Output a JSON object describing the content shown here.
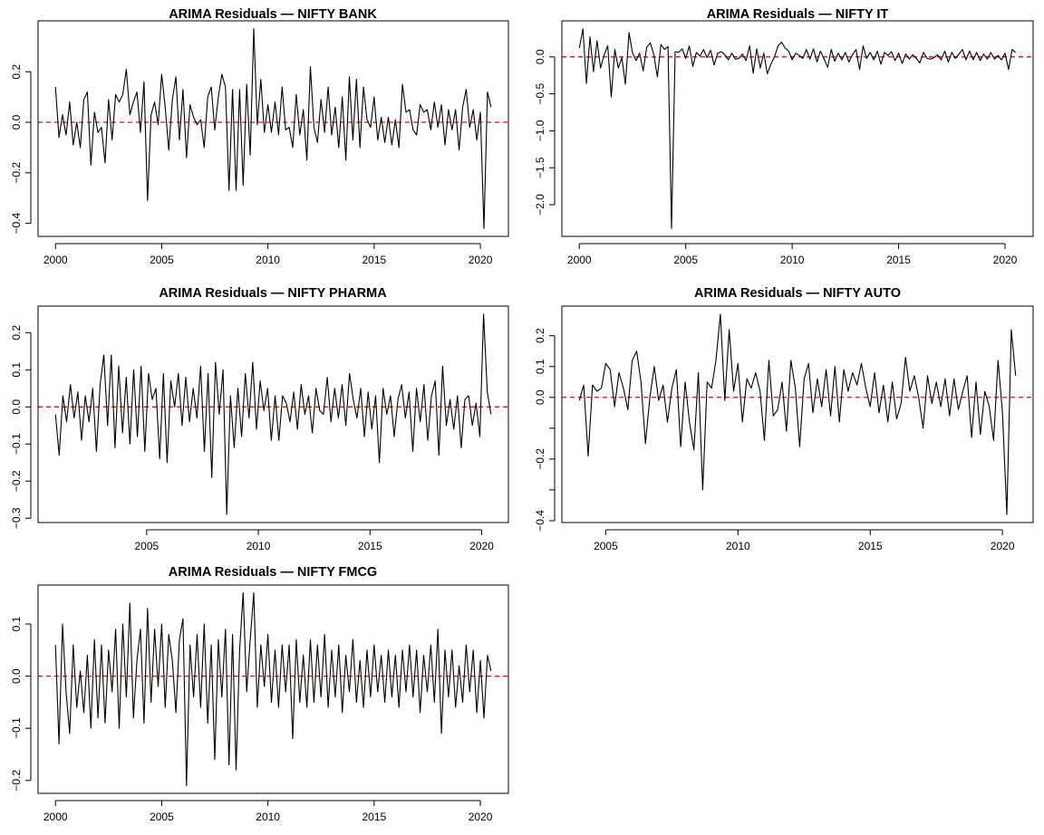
{
  "chart_data": [
    {
      "type": "line",
      "title": "ARIMA Residuals — NIFTY BANK",
      "start": 2000.0,
      "step_months": 2,
      "xticks": [
        2000,
        2005,
        2010,
        2015,
        2020
      ],
      "yticks": [
        -0.4,
        -0.2,
        0.0,
        0.2
      ],
      "ytick_labels": [
        "-0.4",
        "-0.2",
        "0.0",
        "0.2"
      ],
      "reference_line": 0,
      "line_color": "#000000",
      "reference_color": "#ff0000",
      "values": [
        0.14,
        -0.06,
        0.03,
        -0.05,
        0.08,
        -0.09,
        0.0,
        -0.1,
        0.09,
        0.12,
        -0.17,
        0.04,
        -0.04,
        -0.02,
        -0.16,
        0.09,
        -0.07,
        0.11,
        0.08,
        0.11,
        0.21,
        0.03,
        0.08,
        0.12,
        -0.04,
        0.16,
        -0.31,
        0.03,
        0.08,
        -0.01,
        0.19,
        0.06,
        -0.11,
        0.09,
        0.18,
        -0.07,
        0.13,
        -0.14,
        0.07,
        0.02,
        -0.01,
        0.01,
        -0.1,
        0.1,
        0.14,
        -0.03,
        0.1,
        0.19,
        0.14,
        -0.27,
        0.13,
        -0.27,
        0.13,
        -0.25,
        0.15,
        -0.13,
        0.37,
        -0.01,
        0.17,
        -0.04,
        0.07,
        -0.04,
        0.08,
        -0.05,
        0.14,
        -0.03,
        -0.02,
        -0.1,
        0.11,
        -0.05,
        0.05,
        -0.15,
        0.22,
        -0.02,
        -0.08,
        0.09,
        -0.04,
        0.14,
        -0.05,
        0.06,
        -0.1,
        0.1,
        -0.15,
        0.18,
        -0.07,
        0.17,
        -0.1,
        0.14,
        0.01,
        -0.02,
        0.1,
        -0.07,
        0.02,
        -0.08,
        0.02,
        -0.09,
        0.01,
        -0.1,
        0.15,
        0.04,
        0.05,
        -0.03,
        -0.05,
        0.07,
        0.04,
        0.05,
        -0.03,
        0.08,
        -0.02,
        0.07,
        -0.09,
        0.05,
        -0.03,
        0.05,
        -0.11,
        0.06,
        0.13,
        -0.02,
        0.05,
        -0.07,
        0.04,
        -0.42,
        0.12,
        0.06
      ]
    },
    {
      "type": "line",
      "title": "ARIMA Residuals — NIFTY IT",
      "start": 2000.0,
      "step_months": 2,
      "xticks": [
        2000,
        2005,
        2010,
        2015,
        2020
      ],
      "yticks": [
        -2.0,
        -1.5,
        -1.0,
        -0.5,
        0.0
      ],
      "ytick_labels": [
        "-2.0",
        "-1.5",
        "-1.0",
        "-0.5",
        "0.0"
      ],
      "reference_line": 0,
      "line_color": "#000000",
      "reference_color": "#ff0000",
      "values": [
        0.12,
        0.38,
        -0.36,
        0.27,
        -0.2,
        0.22,
        -0.15,
        0.03,
        0.15,
        -0.54,
        0.1,
        -0.15,
        -0.01,
        -0.37,
        0.33,
        0.05,
        -0.05,
        0.05,
        -0.19,
        0.13,
        0.19,
        0.03,
        -0.27,
        0.17,
        0.1,
        0.14,
        -2.32,
        0.07,
        0.06,
        0.11,
        -0.02,
        0.15,
        -0.13,
        0.06,
        0.01,
        0.1,
        -0.01,
        0.09,
        -0.11,
        0.05,
        0.07,
        0.03,
        -0.04,
        0.05,
        -0.03,
        -0.02,
        0.04,
        -0.05,
        0.15,
        -0.22,
        0.11,
        -0.15,
        0.05,
        -0.23,
        -0.1,
        0.0,
        0.15,
        0.2,
        0.12,
        0.08,
        -0.04,
        0.05,
        0.02,
        -0.02,
        0.1,
        -0.03,
        0.11,
        -0.07,
        0.08,
        -0.03,
        -0.14,
        0.1,
        -0.06,
        0.05,
        -0.04,
        0.06,
        -0.07,
        0.03,
        0.1,
        -0.17,
        0.15,
        -0.02,
        0.06,
        -0.04,
        0.08,
        -0.1,
        0.06,
        0.02,
        0.07,
        -0.05,
        0.05,
        -0.09,
        0.04,
        -0.03,
        0.03,
        -0.02,
        -0.08,
        0.06,
        -0.02,
        -0.03,
        -0.01,
        0.03,
        -0.04,
        0.08,
        -0.07,
        0.06,
        -0.02,
        0.04,
        0.1,
        -0.04,
        0.08,
        -0.04,
        0.06,
        -0.05,
        0.04,
        -0.03,
        0.06,
        -0.03,
        0.02,
        -0.04,
        0.05,
        -0.17,
        0.1,
        0.06
      ]
    },
    {
      "type": "line",
      "title": "ARIMA Residuals — NIFTY PHARMA",
      "start": 2000.917,
      "step_months": 2,
      "xticks": [
        2005,
        2010,
        2015,
        2020
      ],
      "yticks": [
        -0.3,
        -0.2,
        -0.1,
        0.0,
        0.1,
        0.2
      ],
      "ytick_labels": [
        "-0.3",
        "-0.2",
        "-0.1",
        "0.0",
        "0.1",
        "0.2"
      ],
      "reference_line": 0,
      "line_color": "#000000",
      "reference_color": "#ff0000",
      "values": [
        -0.02,
        -0.13,
        0.03,
        -0.04,
        0.06,
        -0.03,
        0.04,
        -0.09,
        0.03,
        -0.04,
        0.05,
        -0.12,
        0.06,
        0.14,
        -0.05,
        0.14,
        -0.11,
        0.11,
        -0.07,
        0.08,
        -0.1,
        0.1,
        -0.08,
        0.11,
        -0.12,
        0.09,
        0.02,
        0.05,
        -0.14,
        0.09,
        -0.15,
        0.07,
        0.0,
        0.09,
        -0.05,
        0.08,
        -0.04,
        0.05,
        -0.03,
        0.11,
        -0.12,
        0.09,
        -0.19,
        0.12,
        -0.02,
        0.1,
        -0.29,
        0.03,
        -0.11,
        0.05,
        -0.08,
        0.09,
        -0.03,
        0.12,
        -0.06,
        0.07,
        -0.01,
        0.05,
        -0.09,
        0.03,
        -0.09,
        0.03,
        0.01,
        -0.04,
        0.04,
        -0.06,
        0.06,
        -0.02,
        0.03,
        -0.07,
        0.05,
        -0.01,
        -0.02,
        0.08,
        -0.04,
        0.05,
        -0.03,
        0.06,
        -0.05,
        0.09,
        0.02,
        -0.03,
        0.05,
        -0.08,
        0.04,
        -0.06,
        0.03,
        -0.15,
        0.05,
        -0.02,
        0.03,
        -0.08,
        0.02,
        0.06,
        -0.03,
        0.04,
        -0.12,
        0.05,
        -0.04,
        0.06,
        -0.09,
        0.03,
        0.07,
        -0.13,
        0.11,
        -0.05,
        0.02,
        -0.06,
        0.03,
        -0.11,
        0.02,
        0.03,
        -0.05,
        0.01,
        -0.08,
        0.25,
        0.04,
        -0.02
      ]
    },
    {
      "type": "line",
      "title": "ARIMA Residuals — NIFTY AUTO",
      "start": 2004.0,
      "step_months": 2,
      "xticks": [
        2005,
        2010,
        2015,
        2020
      ],
      "yticks": [
        -0.4,
        -0.3,
        -0.2,
        -0.1,
        0.0,
        0.1,
        0.2
      ],
      "ytick_labels": [
        "-0.4",
        "",
        "-0.2",
        "",
        "0.0",
        "0.1",
        "0.2"
      ],
      "reference_line": 0,
      "line_color": "#000000",
      "reference_color": "#ff0000",
      "values": [
        -0.01,
        0.04,
        -0.19,
        0.04,
        0.02,
        0.03,
        0.11,
        0.09,
        -0.03,
        0.08,
        0.03,
        -0.04,
        0.12,
        0.15,
        0.05,
        -0.15,
        0.0,
        0.1,
        -0.01,
        0.04,
        -0.08,
        0.03,
        0.09,
        -0.16,
        0.05,
        -0.08,
        -0.17,
        0.08,
        -0.3,
        0.05,
        0.03,
        0.12,
        0.27,
        -0.01,
        0.22,
        0.02,
        0.11,
        -0.08,
        0.06,
        0.03,
        0.08,
        0.02,
        -0.14,
        0.12,
        -0.06,
        -0.04,
        0.05,
        -0.11,
        0.12,
        0.03,
        -0.16,
        0.06,
        0.11,
        -0.05,
        0.06,
        -0.03,
        0.09,
        -0.06,
        0.1,
        -0.08,
        0.09,
        0.02,
        0.08,
        0.04,
        0.11,
        0.03,
        -0.03,
        0.08,
        -0.05,
        0.04,
        -0.08,
        0.05,
        -0.07,
        -0.02,
        0.13,
        0.02,
        0.07,
        0.0,
        -0.1,
        0.07,
        -0.02,
        0.05,
        -0.03,
        0.06,
        -0.06,
        0.06,
        -0.04,
        0.02,
        0.07,
        -0.13,
        0.05,
        -0.12,
        0.02,
        -0.03,
        -0.14,
        0.12,
        -0.05,
        -0.38,
        0.22,
        0.07
      ]
    },
    {
      "type": "line",
      "title": "ARIMA Residuals — NIFTY FMCG",
      "start": 2000.0,
      "step_months": 2,
      "xticks": [
        2000,
        2005,
        2010,
        2015,
        2020
      ],
      "yticks": [
        -0.2,
        -0.1,
        0.0,
        0.1
      ],
      "ytick_labels": [
        "-0.2",
        "-0.1",
        "0.0",
        "0.1"
      ],
      "reference_line": 0,
      "line_color": "#000000",
      "reference_color": "#ff0000",
      "values": [
        0.06,
        -0.13,
        0.1,
        -0.03,
        -0.11,
        0.06,
        -0.06,
        0.01,
        -0.07,
        0.04,
        -0.1,
        0.07,
        -0.08,
        0.06,
        -0.09,
        0.05,
        -0.03,
        0.09,
        -0.1,
        0.1,
        -0.04,
        0.14,
        -0.08,
        0.03,
        0.09,
        -0.09,
        0.13,
        -0.05,
        0.09,
        -0.02,
        0.1,
        -0.06,
        0.08,
        0.03,
        -0.07,
        0.07,
        0.11,
        -0.21,
        0.06,
        -0.04,
        0.08,
        -0.06,
        0.1,
        -0.09,
        0.06,
        -0.16,
        0.07,
        -0.04,
        0.09,
        -0.17,
        0.08,
        -0.18,
        0.05,
        0.16,
        -0.03,
        0.07,
        0.16,
        -0.06,
        0.06,
        -0.02,
        0.08,
        -0.05,
        0.05,
        -0.06,
        0.06,
        -0.03,
        0.06,
        -0.12,
        0.07,
        -0.05,
        0.04,
        -0.06,
        0.07,
        -0.05,
        0.06,
        -0.04,
        0.08,
        -0.06,
        0.05,
        -0.04,
        0.06,
        -0.07,
        0.04,
        -0.03,
        0.07,
        -0.05,
        0.03,
        -0.06,
        0.05,
        -0.04,
        0.06,
        -0.03,
        0.04,
        -0.05,
        0.05,
        -0.04,
        0.04,
        -0.06,
        0.05,
        -0.03,
        0.06,
        -0.04,
        0.05,
        -0.07,
        0.04,
        -0.03,
        0.06,
        -0.05,
        0.09,
        -0.11,
        0.05,
        -0.04,
        0.05,
        -0.06,
        0.02,
        -0.05,
        0.06,
        -0.03,
        0.05,
        -0.07,
        0.03,
        -0.08,
        0.04,
        0.01
      ]
    }
  ]
}
